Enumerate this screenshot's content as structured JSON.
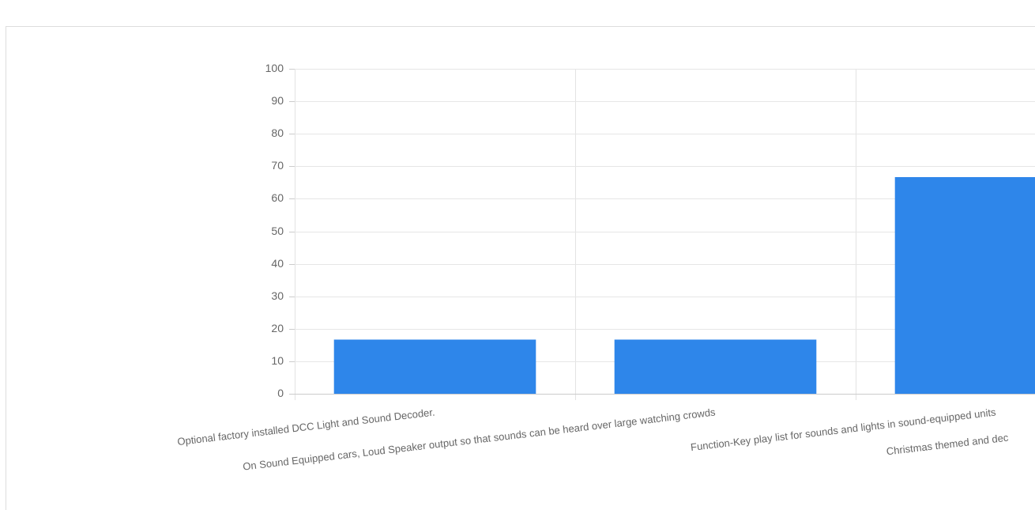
{
  "chart_data": {
    "type": "bar",
    "categories": [
      "Optional factory installed DCC Light and Sound Decoder.",
      "On Sound Equipped cars, Loud Speaker output so that sounds can be heard over large watching crowds",
      "Function-Key play list for sounds and lights in sound-equipped units",
      "Christmas themed and dec"
    ],
    "values": [
      16.67,
      16.67,
      66.67,
      null
    ],
    "color": "#2e86ea",
    "ylim": [
      0,
      100
    ],
    "yticks": [
      0,
      10,
      20,
      30,
      40,
      50,
      60,
      70,
      80,
      90,
      100
    ],
    "grid": true
  }
}
